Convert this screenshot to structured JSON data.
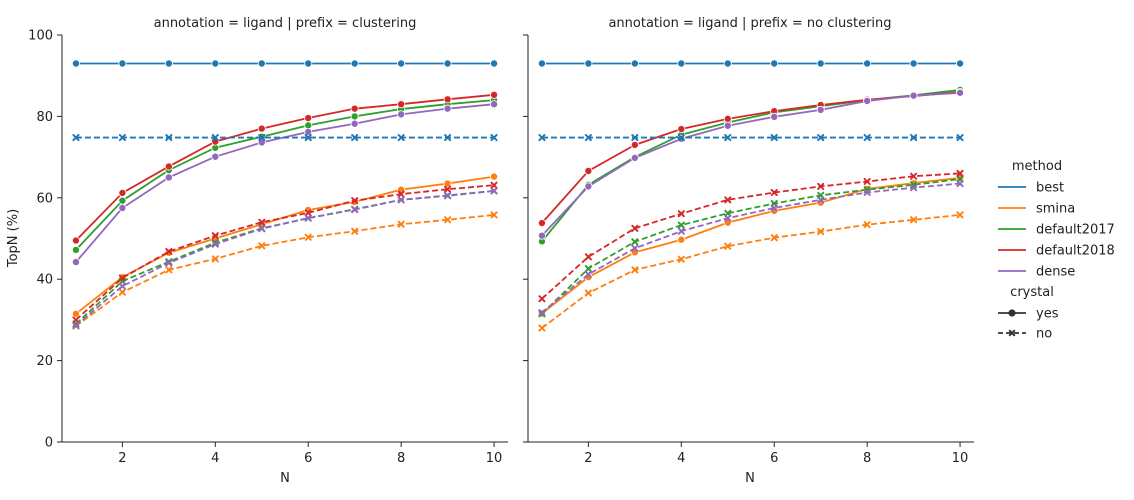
{
  "figure": {
    "ylabel": "TopN (%)",
    "xlabel": "N",
    "legend": {
      "method_title": "method",
      "crystal_title": "crystal",
      "crystal_levels": [
        "yes",
        "no"
      ]
    }
  },
  "colors": {
    "best": "#1f77b4",
    "smina": "#ff7f0e",
    "default2017": "#2ca02c",
    "default2018": "#d62728",
    "dense": "#9467bd"
  },
  "chart_data": [
    {
      "type": "line",
      "title": "annotation = ligand | prefix = clustering",
      "xlabel": "N",
      "ylabel": "TopN (%)",
      "xlim": [
        0.7,
        10.3
      ],
      "ylim": [
        0,
        100
      ],
      "xticks": [
        2,
        4,
        6,
        8,
        10
      ],
      "yticks": [
        0,
        20,
        40,
        60,
        80,
        100
      ],
      "x": [
        1,
        2,
        3,
        4,
        5,
        6,
        7,
        8,
        9,
        10
      ],
      "series": [
        {
          "name": "best",
          "crystal": "yes",
          "values": [
            93,
            93,
            93,
            93,
            93,
            93,
            93,
            93,
            93,
            93
          ]
        },
        {
          "name": "smina",
          "crystal": "yes",
          "values": [
            31.5,
            40.5,
            46.5,
            50,
            53.5,
            57,
            59,
            62,
            63.5,
            65.2
          ]
        },
        {
          "name": "default2017",
          "crystal": "yes",
          "values": [
            47.2,
            59.3,
            66.8,
            72.3,
            75,
            77.8,
            80,
            81.8,
            83,
            84
          ]
        },
        {
          "name": "default2018",
          "crystal": "yes",
          "values": [
            49.5,
            61.2,
            67.7,
            73.8,
            77,
            79.6,
            81.9,
            83,
            84.2,
            85.3
          ]
        },
        {
          "name": "dense",
          "crystal": "yes",
          "values": [
            44.2,
            57.5,
            65,
            70.1,
            73.6,
            76.2,
            78.2,
            80.5,
            81.9,
            83
          ]
        },
        {
          "name": "best",
          "crystal": "no",
          "values": [
            74.8,
            74.8,
            74.8,
            74.8,
            74.8,
            74.8,
            74.8,
            74.8,
            74.8,
            74.8
          ]
        },
        {
          "name": "smina",
          "crystal": "no",
          "values": [
            28.5,
            36.8,
            42.3,
            45,
            48.2,
            50.3,
            51.8,
            53.5,
            54.6,
            55.8
          ]
        },
        {
          "name": "default2017",
          "crystal": "no",
          "values": [
            29,
            39.5,
            44.3,
            49,
            52.5,
            55,
            57.2,
            59.5,
            60.5,
            61.7
          ]
        },
        {
          "name": "default2018",
          "crystal": "no",
          "values": [
            30,
            40.3,
            46.8,
            50.7,
            54,
            56.3,
            59.3,
            60.9,
            62.1,
            63.1
          ]
        },
        {
          "name": "dense",
          "crystal": "no",
          "values": [
            28.6,
            38.3,
            44,
            48.6,
            52.4,
            55,
            57.1,
            59.5,
            60.6,
            61.7
          ]
        }
      ]
    },
    {
      "type": "line",
      "title": "annotation = ligand | prefix = no clustering",
      "xlabel": "N",
      "ylabel": "TopN (%)",
      "xlim": [
        0.7,
        10.3
      ],
      "ylim": [
        0,
        100
      ],
      "xticks": [
        2,
        4,
        6,
        8,
        10
      ],
      "yticks": [
        0,
        20,
        40,
        60,
        80,
        100
      ],
      "x": [
        1,
        2,
        3,
        4,
        5,
        6,
        7,
        8,
        9,
        10
      ],
      "series": [
        {
          "name": "best",
          "crystal": "yes",
          "values": [
            93,
            93,
            93,
            93,
            93,
            93,
            93,
            93,
            93,
            93
          ]
        },
        {
          "name": "smina",
          "crystal": "yes",
          "values": [
            31.6,
            40.5,
            46.6,
            49.7,
            53.9,
            56.8,
            58.8,
            62.2,
            63.6,
            64.9
          ]
        },
        {
          "name": "default2017",
          "crystal": "yes",
          "values": [
            49.3,
            63.2,
            70,
            75.5,
            78.5,
            81,
            82.5,
            84,
            85.2,
            86.5
          ]
        },
        {
          "name": "default2018",
          "crystal": "yes",
          "values": [
            53.8,
            66.6,
            73,
            76.9,
            79.4,
            81.3,
            82.8,
            84.1,
            85,
            86
          ]
        },
        {
          "name": "dense",
          "crystal": "yes",
          "values": [
            50.7,
            62.8,
            69.8,
            74.5,
            77.7,
            79.9,
            81.6,
            83.8,
            85.1,
            85.8
          ]
        },
        {
          "name": "best",
          "crystal": "no",
          "values": [
            74.8,
            74.8,
            74.8,
            74.8,
            74.8,
            74.8,
            74.8,
            74.8,
            74.8,
            74.8
          ]
        },
        {
          "name": "smina",
          "crystal": "no",
          "values": [
            28,
            36.6,
            42.3,
            44.9,
            48.1,
            50.2,
            51.7,
            53.4,
            54.6,
            55.8
          ]
        },
        {
          "name": "default2017",
          "crystal": "no",
          "values": [
            31.5,
            42.6,
            49.2,
            53.3,
            56.2,
            58.6,
            60.6,
            62,
            63.2,
            64.6
          ]
        },
        {
          "name": "default2018",
          "crystal": "no",
          "values": [
            35.2,
            45.5,
            52.5,
            56.1,
            59.5,
            61.3,
            62.8,
            64,
            65.3,
            66
          ]
        },
        {
          "name": "dense",
          "crystal": "no",
          "values": [
            31.8,
            41.2,
            47.6,
            51.8,
            55,
            57.5,
            59.5,
            61.3,
            62.5,
            63.5
          ]
        }
      ]
    }
  ]
}
